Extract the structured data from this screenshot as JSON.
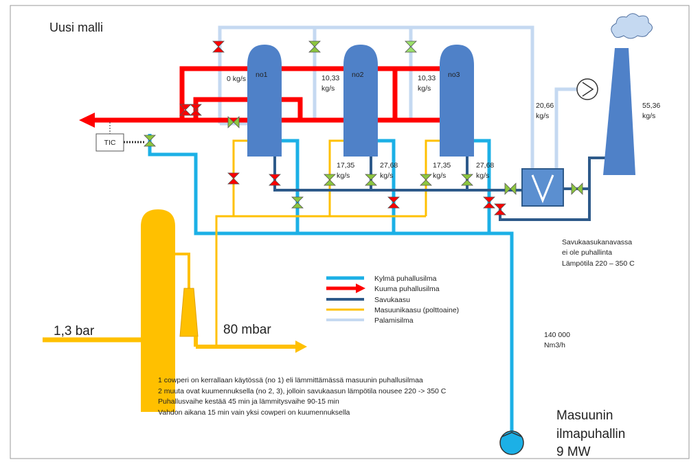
{
  "title": "Uusi malli",
  "stoves": [
    "no1",
    "no2",
    "no3"
  ],
  "flow_labels": [
    {
      "lines": [
        "0 kg/s"
      ]
    },
    {
      "lines": [
        "10,33",
        "kg/s"
      ]
    },
    {
      "lines": [
        "10,33",
        "kg/s"
      ]
    },
    {
      "lines": [
        "20,66",
        "kg/s"
      ]
    },
    {
      "lines": [
        "55,36",
        "kg/s"
      ]
    },
    {
      "lines": [
        "17,35",
        "kg/s"
      ]
    },
    {
      "lines": [
        "27,68",
        "kg/s"
      ]
    },
    {
      "lines": [
        "17,35",
        "kg/s"
      ]
    },
    {
      "lines": [
        "27,68",
        "kg/s"
      ]
    },
    {
      "lines": [
        "140 000",
        "Nm3/h"
      ]
    }
  ],
  "tic": "TIC",
  "pressures": [
    "1,3 bar",
    "80 mbar"
  ],
  "flue_note": [
    "Savukaasukanavassa",
    "ei ole puhallinta",
    "Lämpötila 220 – 350 C"
  ],
  "legend": [
    "Kylmä puhallusilma",
    "Kuuma puhallusilma",
    "Savukaasu",
    "Masuunikaasu (polttoaine)",
    "Palamisilma"
  ],
  "notes": [
    "1 cowperi on kerrallaan käytössä (no 1) eli lämmittämässä masuunin puhallusilmaa",
    "2 muuta ovat kuumennuksella (no 2, 3), jolloin savukaasun lämpötila nousee 220 -> 350 C",
    "Puhallusvaihe kestää 45 min ja lämmitysvaihe 90-15 min",
    "Vahdon aikana 15 min vain yksi cowperi on kuumennuksella"
  ],
  "blower": [
    "Masuunin",
    "ilmapuhallin",
    "9 MW"
  ]
}
